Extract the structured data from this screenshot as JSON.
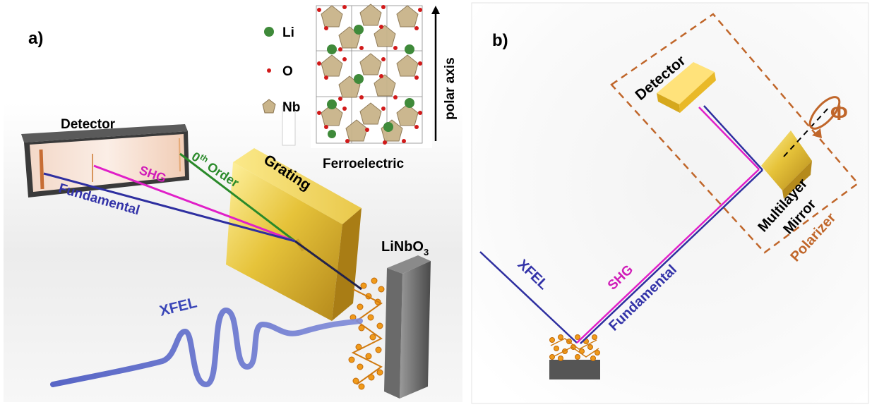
{
  "panel_a": {
    "label": "a)",
    "detector_label": "Detector",
    "grating_label": "Grating",
    "beam_zero_order": "0",
    "beam_zero_order_sup": "th",
    "beam_zero_order_word": " Order",
    "beam_shg": "SHG",
    "beam_fundamental": "Fundamental",
    "source_label": "XFEL",
    "sample_label_main": "LiNbO",
    "sample_label_sub": "3"
  },
  "crystal_inset": {
    "legend": [
      {
        "symbol": "Li",
        "color": "#3f8a3a"
      },
      {
        "symbol": "O",
        "color": "#d11a1a"
      },
      {
        "symbol": "Nb",
        "color": "#c9b48a"
      }
    ],
    "axis_label": "polar axis",
    "caption": "Ferroelectric"
  },
  "panel_b": {
    "label": "b)",
    "detector_label": "Detector",
    "rotation_symbol": "Φ",
    "mirror_label_1": "Multilayer",
    "mirror_label_2": "Mirror",
    "polarizer_label": "Polarizer",
    "source_label": "XFEL",
    "beam_shg": "SHG",
    "beam_fundamental": "Fundamental"
  },
  "colors": {
    "fundamental": "#2e2fa0",
    "shg": "#e01fc8",
    "zero_order": "#2a8a2a",
    "xfel": "#5563c8",
    "gold": "#e6c33a",
    "polarizer_box": "#c0662a",
    "sample": "#f09a1a"
  }
}
